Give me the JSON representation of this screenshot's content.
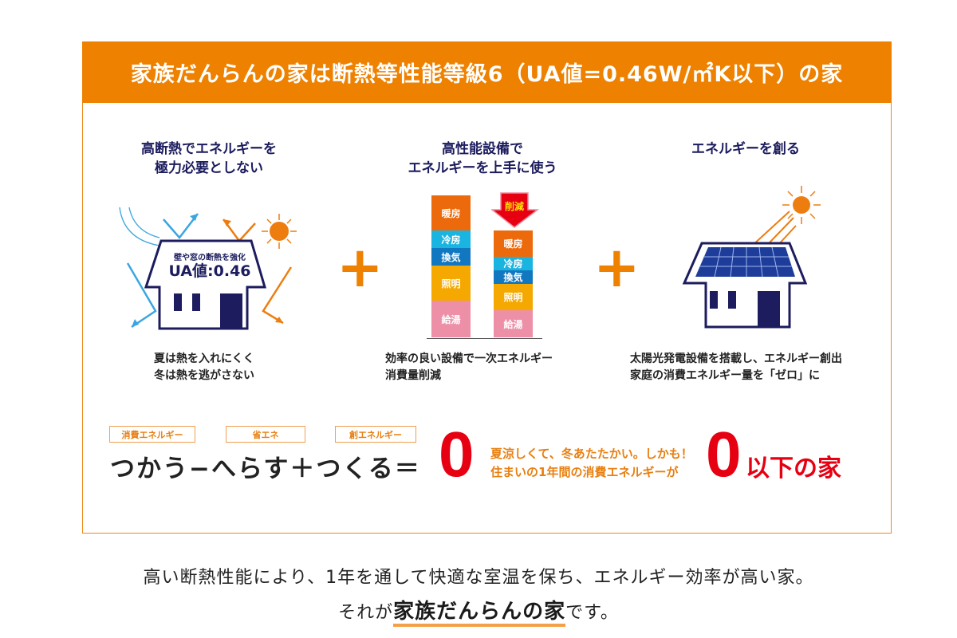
{
  "header": {
    "title": "家族だんらんの家は断熱等性能等級6（UA値=0.46W/㎡K以下）の家"
  },
  "columns": [
    {
      "title_l1": "高断熱でエネルギーを",
      "title_l2": "極力必要としない",
      "house_l1": "壁や窓の断熱を強化",
      "house_l2": "UA値:0.46",
      "desc_l1": "夏は熱を入れにくく",
      "desc_l2": "冬は熱を逃がさない"
    },
    {
      "title_l1": "高性能設備で",
      "title_l2": "エネルギーを上手に使う",
      "arrow_label": "削減",
      "before": [
        "暖房",
        "冷房",
        "換気",
        "照明",
        "給湯"
      ],
      "after": [
        "暖房",
        "冷房",
        "換気",
        "照明",
        "給湯"
      ],
      "desc_l1": "効率の良い設備で一次エネルギー",
      "desc_l2": "消費量削減"
    },
    {
      "title_l1": "エネルギーを創る",
      "desc_l1": "太陽光発電設備を搭載し、エネルギー創出",
      "desc_l2": "家庭の消費エネルギー量を「ゼロ」に"
    }
  ],
  "plus": "+",
  "equation": {
    "tag1": "消費エネルギー",
    "tag2": "省エネ",
    "tag3": "創エネルギー",
    "text": "つかう−へらす＋つくる＝",
    "zero": "0",
    "msg_l1": "夏涼しくて、冬あたたかい。しかも！",
    "msg_l2": "住まいの1年間の消費エネルギーが",
    "zero2": "0",
    "suffix": "以下の家"
  },
  "bottom": {
    "line1": "高い断熱性能により、1年を通して快適な室温を保ち、エネルギー効率が高い家。",
    "pre": "それが",
    "highlight": "家族だんらんの家",
    "post": "です。"
  },
  "colors": {
    "orange": "#ee8100",
    "navy": "#1c1c5e",
    "red": "#e60012",
    "heating": "#ec6a0c",
    "cooling": "#1ab4e0",
    "ventilation": "#1177c0",
    "lighting": "#f5a800",
    "hotwater": "#ee8fa8"
  }
}
